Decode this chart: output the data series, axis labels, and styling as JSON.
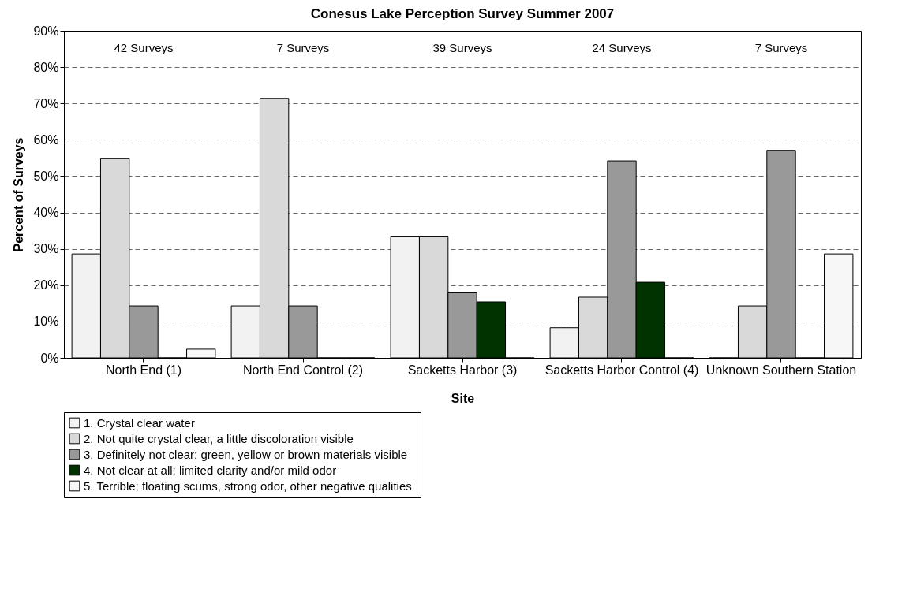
{
  "chart_data": {
    "type": "bar",
    "title": "Conesus Lake Perception Survey Summer 2007",
    "xlabel": "Site",
    "ylabel": "Percent of Surveys",
    "categories": [
      "North End (1)",
      "North End Control (2)",
      "Sacketts Harbor (3)",
      "Sacketts Harbor Control (4)",
      "Unknown Southern Station"
    ],
    "series": [
      {
        "name": "1.  Crystal clear water",
        "color": "#f2f2f2",
        "values": [
          28.6,
          14.3,
          33.3,
          8.3,
          0
        ]
      },
      {
        "name": "2.  Not quite crystal clear, a little discoloration visible",
        "color": "#d9d9d9",
        "values": [
          54.8,
          71.4,
          33.3,
          16.7,
          14.3
        ]
      },
      {
        "name": "3.  Definitely not clear; green, yellow or brown materials visible",
        "color": "#999999",
        "values": [
          14.3,
          14.3,
          17.9,
          54.2,
          57.1
        ]
      },
      {
        "name": "4.  Not clear at all; limited clarity and/or mild odor",
        "color": "#003300",
        "values": [
          0,
          0,
          15.4,
          20.8,
          0
        ]
      },
      {
        "name": "5.  Terrible; floating scums, strong odor, other negative qualities",
        "color": "#f7f7f7",
        "values": [
          2.4,
          0,
          0,
          0,
          28.6
        ]
      }
    ],
    "ylim": [
      0,
      90
    ],
    "yticks": [
      {
        "value": 0,
        "label": "0%"
      },
      {
        "value": 10,
        "label": "10%"
      },
      {
        "value": 20,
        "label": "20%"
      },
      {
        "value": 30,
        "label": "30%"
      },
      {
        "value": 40,
        "label": "40%"
      },
      {
        "value": 50,
        "label": "50%"
      },
      {
        "value": 60,
        "label": "60%"
      },
      {
        "value": 70,
        "label": "70%"
      },
      {
        "value": 80,
        "label": "80%"
      },
      {
        "value": 90,
        "label": "90%"
      }
    ],
    "grid": "y",
    "legend": "bottom",
    "annotations": [
      "42 Surveys",
      "7 Surveys",
      "39 Surveys",
      "24 Surveys",
      "7 Surveys"
    ]
  }
}
